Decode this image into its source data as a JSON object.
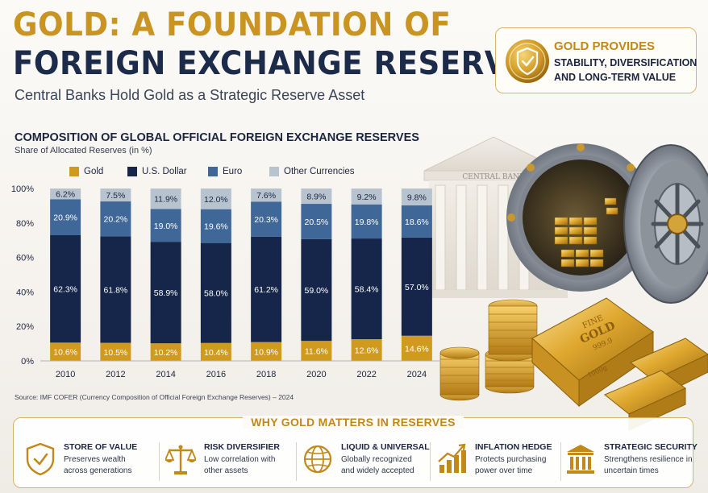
{
  "header": {
    "title_line1": "GOLD: A FOUNDATION OF",
    "title_line2": "FOREIGN EXCHANGE RESERVES",
    "subtitle": "Central Banks Hold Gold as a Strategic Reserve Asset"
  },
  "callout": {
    "heading": "GOLD PROVIDES",
    "line1": "STABILITY, DIVERSIFICATION",
    "line2": "AND LONG-TERM VALUE"
  },
  "illustration": {
    "building_label": "CENTRAL BANK",
    "bar_text1": "FINE",
    "bar_text2": "GOLD",
    "bar_text3": "999.9",
    "bar_text4": "1000g"
  },
  "colors": {
    "gold": "#cf9a1e",
    "usd": "#16264a",
    "euro": "#3f6797",
    "other": "#b8c3d0",
    "accent": "#c2891a"
  },
  "chart_data": {
    "type": "bar",
    "stacked": true,
    "title": "COMPOSITION OF GLOBAL OFFICIAL FOREIGN EXCHANGE RESERVES",
    "subtitle": "Share of Allocated Reserves (in %)",
    "categories": [
      "2010",
      "2012",
      "2014",
      "2016",
      "2018",
      "2020",
      "2022",
      "2024"
    ],
    "series": [
      {
        "name": "Gold",
        "color": "#cf9a1e",
        "values": [
          10.6,
          10.5,
          10.2,
          10.4,
          10.9,
          11.6,
          12.6,
          14.6
        ]
      },
      {
        "name": "U.S. Dollar",
        "color": "#16264a",
        "values": [
          62.3,
          61.8,
          58.9,
          58.0,
          61.2,
          59.0,
          58.4,
          57.0
        ]
      },
      {
        "name": "Euro",
        "color": "#3f6797",
        "values": [
          20.9,
          20.2,
          19.0,
          19.6,
          20.3,
          20.5,
          19.8,
          18.6
        ]
      },
      {
        "name": "Other Currencies",
        "color": "#b8c3d0",
        "values": [
          6.2,
          7.5,
          11.9,
          12.0,
          7.6,
          8.9,
          9.2,
          9.8
        ]
      }
    ],
    "ylim": [
      0,
      100
    ],
    "yticks": [
      "0%",
      "20%",
      "40%",
      "60%",
      "80%",
      "100%"
    ],
    "legend_position": "top",
    "grid": false
  },
  "source": "Source: IMF COFER (Currency Composition of Official Foreign Exchange Reserves) – 2024",
  "why": {
    "title": "WHY GOLD MATTERS IN RESERVES",
    "items": [
      {
        "icon": "shield-check-icon",
        "heading": "STORE OF VALUE",
        "line1": "Preserves wealth",
        "line2": "across generations"
      },
      {
        "icon": "scales-icon",
        "heading": "RISK DIVERSIFIER",
        "line1": "Low correlation with",
        "line2": "other assets"
      },
      {
        "icon": "globe-icon",
        "heading": "LIQUID & UNIVERSAL",
        "line1": "Globally recognized",
        "line2": "and widely accepted"
      },
      {
        "icon": "rising-chart-icon",
        "heading": "INFLATION HEDGE",
        "line1": "Protects purchasing",
        "line2": "power over time"
      },
      {
        "icon": "bank-building-icon",
        "heading": "STRATEGIC SECURITY",
        "line1": "Strengthens resilience in",
        "line2": "uncertain times"
      }
    ]
  }
}
